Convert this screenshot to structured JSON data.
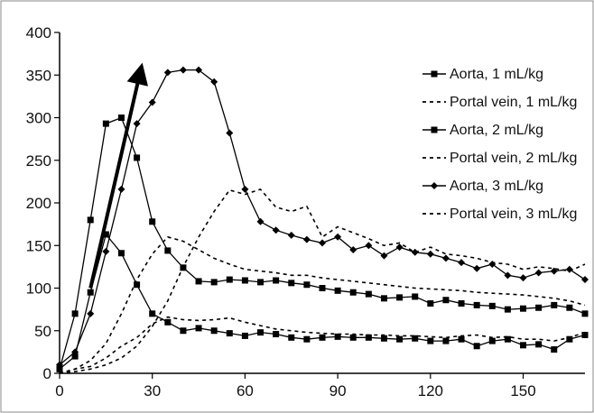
{
  "chart_data": {
    "type": "line",
    "title": "",
    "xlabel": "",
    "ylabel": "",
    "xlim": [
      0,
      170
    ],
    "ylim": [
      0,
      400
    ],
    "x_ticks": [
      0,
      30,
      60,
      90,
      120,
      150
    ],
    "y_ticks": [
      0,
      50,
      100,
      150,
      200,
      250,
      300,
      350,
      400
    ],
    "grid": false,
    "legend_position": "right",
    "series": [
      {
        "name": "Aorta, 1 mL/kg",
        "style": "solid",
        "marker": "square",
        "x": [
          0,
          5,
          10,
          15,
          20,
          25,
          30,
          35,
          40,
          45,
          50,
          55,
          60,
          65,
          70,
          75,
          80,
          85,
          90,
          95,
          100,
          105,
          110,
          115,
          120,
          125,
          130,
          135,
          140,
          145,
          150,
          155,
          160,
          165,
          170
        ],
        "values": [
          5,
          20,
          95,
          163,
          141,
          104,
          70,
          60,
          50,
          53,
          50,
          47,
          44,
          48,
          46,
          42,
          40,
          42,
          43,
          42,
          42,
          41,
          40,
          41,
          38,
          38,
          40,
          32,
          38,
          40,
          33,
          34,
          28,
          40,
          45
        ]
      },
      {
        "name": "Portal vein, 1 mL/kg",
        "style": "dotted",
        "marker": "none",
        "x": [
          0,
          5,
          10,
          15,
          20,
          25,
          30,
          35,
          40,
          45,
          50,
          55,
          60,
          65,
          70,
          75,
          80,
          85,
          90,
          95,
          100,
          105,
          110,
          115,
          120,
          125,
          130,
          135,
          140,
          145,
          150,
          155,
          160,
          165,
          170
        ],
        "values": [
          0,
          5,
          8,
          18,
          32,
          42,
          58,
          66,
          63,
          62,
          63,
          65,
          60,
          56,
          52,
          50,
          48,
          47,
          46,
          46,
          45,
          45,
          44,
          44,
          43,
          42,
          44,
          45,
          42,
          43,
          40,
          40,
          38,
          42,
          48
        ]
      },
      {
        "name": "Aorta, 2 mL/kg",
        "style": "solid",
        "marker": "square",
        "x": [
          0,
          5,
          10,
          15,
          20,
          25,
          30,
          35,
          40,
          45,
          50,
          55,
          60,
          65,
          70,
          75,
          80,
          85,
          90,
          95,
          100,
          105,
          110,
          115,
          120,
          125,
          130,
          135,
          140,
          145,
          150,
          155,
          160,
          165,
          170
        ],
        "values": [
          5,
          70,
          180,
          293,
          300,
          253,
          178,
          144,
          124,
          108,
          107,
          110,
          109,
          107,
          109,
          106,
          104,
          100,
          97,
          95,
          93,
          88,
          89,
          90,
          82,
          86,
          82,
          80,
          79,
          75,
          76,
          77,
          80,
          77,
          70
        ]
      },
      {
        "name": "Portal vein, 2 mL/kg",
        "style": "dotted",
        "marker": "none",
        "x": [
          0,
          5,
          10,
          15,
          20,
          25,
          30,
          35,
          40,
          45,
          50,
          55,
          60,
          65,
          70,
          75,
          80,
          85,
          90,
          95,
          100,
          105,
          110,
          115,
          120,
          125,
          130,
          135,
          140,
          145,
          150,
          155,
          160,
          165,
          170
        ],
        "values": [
          0,
          5,
          15,
          35,
          70,
          110,
          140,
          160,
          155,
          145,
          135,
          128,
          122,
          120,
          118,
          115,
          115,
          112,
          110,
          108,
          106,
          104,
          102,
          100,
          99,
          98,
          97,
          95,
          94,
          93,
          92,
          90,
          88,
          85,
          80
        ]
      },
      {
        "name": "Aorta, 3 mL/kg",
        "style": "solid",
        "marker": "diamond",
        "x": [
          0,
          5,
          10,
          15,
          20,
          25,
          30,
          35,
          40,
          45,
          50,
          55,
          60,
          65,
          70,
          75,
          80,
          85,
          90,
          95,
          100,
          105,
          110,
          115,
          120,
          125,
          130,
          135,
          140,
          145,
          150,
          155,
          160,
          165,
          170
        ],
        "values": [
          10,
          25,
          70,
          143,
          216,
          293,
          318,
          353,
          356,
          356,
          342,
          282,
          216,
          178,
          168,
          162,
          157,
          153,
          160,
          145,
          150,
          138,
          148,
          142,
          140,
          135,
          130,
          123,
          128,
          115,
          112,
          118,
          120,
          122,
          110
        ]
      },
      {
        "name": "Portal vein, 3 mL/kg",
        "style": "dotted",
        "marker": "none",
        "x": [
          0,
          5,
          10,
          15,
          20,
          25,
          30,
          35,
          40,
          45,
          50,
          55,
          60,
          65,
          70,
          75,
          80,
          85,
          90,
          95,
          100,
          105,
          110,
          115,
          120,
          125,
          130,
          135,
          140,
          145,
          150,
          155,
          160,
          165,
          170
        ],
        "values": [
          0,
          2,
          5,
          10,
          18,
          32,
          55,
          85,
          125,
          160,
          190,
          215,
          210,
          216,
          195,
          190,
          196,
          160,
          172,
          165,
          158,
          150,
          153,
          142,
          148,
          140,
          138,
          135,
          130,
          128,
          122,
          125,
          123,
          120,
          128
        ]
      }
    ],
    "annotations": [
      {
        "type": "arrow",
        "from": [
          10,
          100
        ],
        "to": [
          26,
          352
        ]
      }
    ]
  }
}
